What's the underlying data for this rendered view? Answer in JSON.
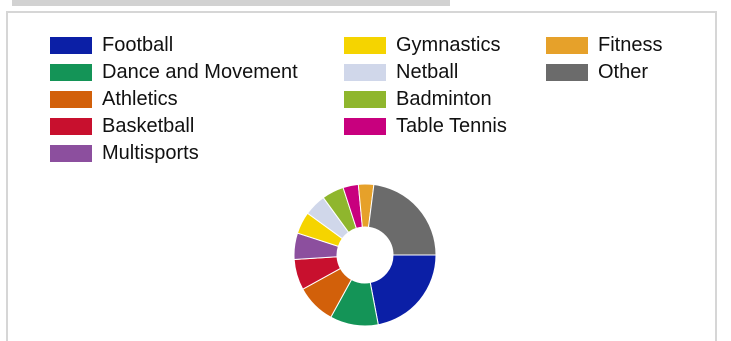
{
  "chart_data": {
    "type": "pie",
    "variant": "donut",
    "title": "",
    "legend_position": "top",
    "categories": [
      "Football",
      "Dance and Movement",
      "Athletics",
      "Basketball",
      "Multisports",
      "Gymnastics",
      "Netball",
      "Badminton",
      "Table Tennis",
      "Fitness",
      "Other"
    ],
    "colors": [
      "#0b1fa6",
      "#149457",
      "#d2600a",
      "#c8102e",
      "#8c4f9e",
      "#f5d400",
      "#d0d7ea",
      "#8fb62d",
      "#c8007e",
      "#e6a12a",
      "#6b6b6b"
    ],
    "values": [
      22,
      11,
      9,
      7,
      6,
      5,
      5,
      5,
      3.5,
      3.5,
      23
    ],
    "legend_columns": [
      [
        0,
        1,
        2,
        3,
        4
      ],
      [
        5,
        6,
        7,
        8
      ],
      [
        9,
        10
      ]
    ]
  }
}
